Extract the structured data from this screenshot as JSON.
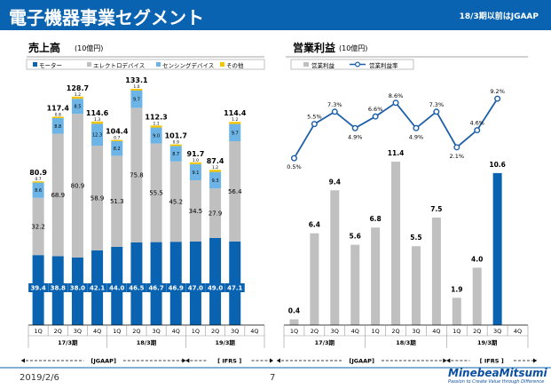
{
  "header": {
    "title": "電子機器事業セグメント",
    "note": "18/3期以前はJGAAP"
  },
  "footer": {
    "date": "2019/2/6",
    "page": "7",
    "logo_name": "MinebeaMitsumi",
    "logo_tagline": "Passion to Create Value through Difference"
  },
  "colors": {
    "brand": "#0a63b0",
    "motor": "#0a63b0",
    "electro": "#c0c0c0",
    "sensing": "#6cb4e6",
    "other": "#f5c400",
    "profit_bar": "#c0c0c0",
    "profit_line": "#1d5fa8"
  },
  "chart_data": [
    {
      "type": "bar",
      "stacked": true,
      "title": "売上高",
      "unit": "(10億円)",
      "categories": [
        "1Q",
        "2Q",
        "3Q",
        "4Q",
        "1Q",
        "2Q",
        "3Q",
        "4Q",
        "1Q",
        "2Q",
        "3Q",
        "4Q"
      ],
      "groups": [
        {
          "label": "17/3期",
          "span": 4
        },
        {
          "label": "18/3期",
          "span": 4
        },
        {
          "label": "19/3期",
          "span": 4
        }
      ],
      "standards": [
        {
          "label": "[JGAAP]",
          "span": 8
        },
        {
          "label": "[ IFRS ]",
          "span": 4
        }
      ],
      "ylim": [
        0,
        140
      ],
      "series": [
        {
          "name": "モーター",
          "color": "#0a63b0",
          "values": [
            39.4,
            38.8,
            38.0,
            42.1,
            44.0,
            46.5,
            46.7,
            46.9,
            47.0,
            49.0,
            47.1,
            null
          ]
        },
        {
          "name": "エレクトロデバイス",
          "color": "#c0c0c0",
          "values": [
            32.2,
            68.9,
            80.9,
            58.9,
            51.3,
            75.8,
            55.5,
            45.2,
            34.5,
            27.9,
            56.4,
            null
          ]
        },
        {
          "name": "センシングデバイス",
          "color": "#6cb4e6",
          "values": [
            8.6,
            8.8,
            8.5,
            12.3,
            8.2,
            9.7,
            9.0,
            8.7,
            9.1,
            9.3,
            9.7,
            null
          ]
        },
        {
          "name": "その他",
          "color": "#f5c400",
          "values": [
            0.7,
            0.8,
            1.2,
            1.3,
            0.7,
            1.0,
            1.1,
            0.9,
            1.0,
            1.2,
            1.2,
            null
          ]
        }
      ],
      "totals": [
        80.9,
        117.4,
        128.7,
        114.6,
        104.4,
        133.1,
        112.3,
        101.7,
        91.7,
        87.4,
        114.4,
        null
      ]
    },
    {
      "type": "bar",
      "title": "営業利益",
      "unit": "(10億円)",
      "categories": [
        "1Q",
        "2Q",
        "3Q",
        "4Q",
        "1Q",
        "2Q",
        "3Q",
        "4Q",
        "1Q",
        "2Q",
        "3Q",
        "4Q"
      ],
      "groups": [
        {
          "label": "17/3期",
          "span": 4
        },
        {
          "label": "18/3期",
          "span": 4
        },
        {
          "label": "19/3期",
          "span": 4
        }
      ],
      "standards": [
        {
          "label": "[JGAAP]",
          "span": 8
        },
        {
          "label": "[ IFRS ]",
          "span": 4
        }
      ],
      "bar_series": {
        "name": "営業利益",
        "values": [
          0.4,
          6.4,
          9.4,
          5.6,
          6.8,
          11.4,
          5.5,
          7.5,
          1.9,
          4.0,
          10.6,
          null
        ],
        "labels": [
          "0.4",
          "6.4",
          "9.4",
          "5.6",
          "6.8",
          "11.4",
          "5.5",
          "7.5",
          "1.9",
          "4.0",
          "10.6",
          ""
        ]
      },
      "line_series": {
        "name": "営業利益率",
        "values": [
          0.5,
          5.5,
          7.3,
          4.9,
          6.6,
          8.6,
          4.9,
          7.3,
          2.1,
          4.6,
          9.2,
          null
        ],
        "labels": [
          "0.5%",
          "5.5%",
          "7.3%",
          "4.9%",
          "6.6%",
          "8.6%",
          "4.9%",
          "7.3%",
          "2.1%",
          "4.6%",
          "9.2%",
          ""
        ]
      },
      "ylim": [
        0,
        14
      ]
    }
  ]
}
